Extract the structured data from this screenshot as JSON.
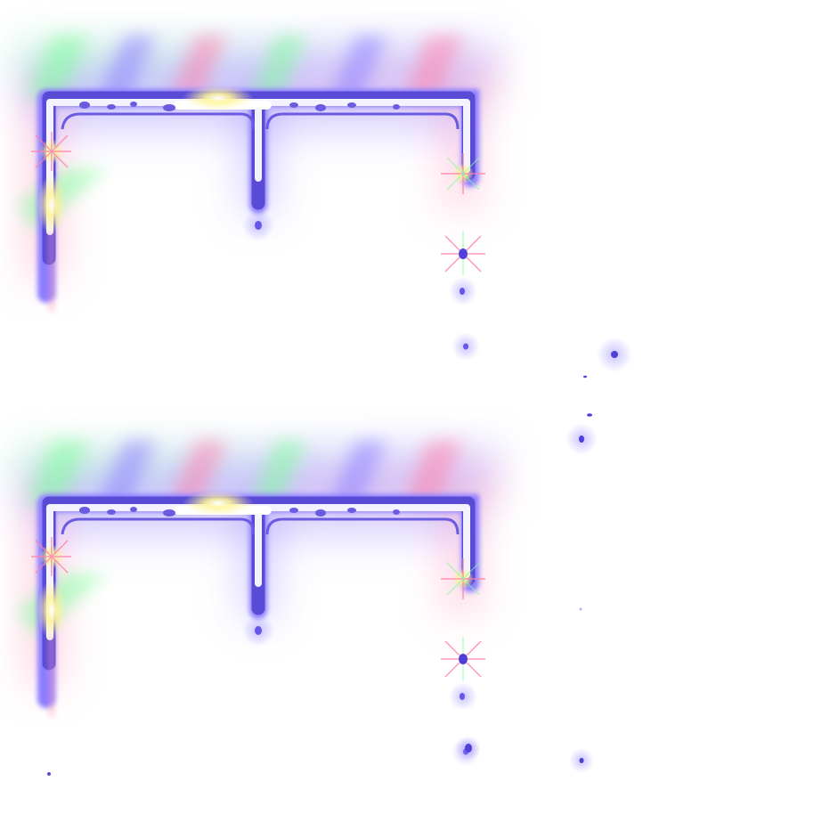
{
  "scene": {
    "description_visible_text": "",
    "colors": {
      "background": "#ffffff",
      "frame_core": "#ffffff",
      "frame_edge": "#5a4bd6",
      "glow_violet": "#8a7cff",
      "glow_pink": "#ff7fa8",
      "glow_green": "#7dff9a",
      "glow_yellow": "#fff59a",
      "drip_dot": "#4e40d8"
    },
    "sprites": [
      {
        "name": "glowing-drip-frame-top"
      },
      {
        "name": "glowing-drip-frame-bottom"
      }
    ]
  }
}
